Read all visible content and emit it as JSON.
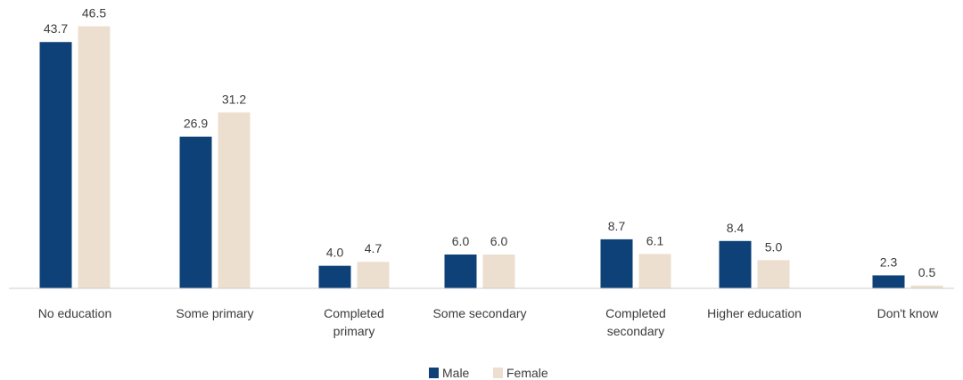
{
  "chart_data": {
    "type": "bar",
    "categories": [
      [
        "No education"
      ],
      [
        "Some primary"
      ],
      [
        "Completed",
        "primary"
      ],
      [
        "Some secondary"
      ],
      [
        "Completed",
        "secondary"
      ],
      [
        "Higher education"
      ],
      [
        "Don't know"
      ]
    ],
    "series": [
      {
        "name": "Male",
        "color": "#0d4177",
        "values": [
          43.7,
          26.9,
          4.0,
          6.0,
          8.7,
          8.4,
          2.3
        ],
        "labels": [
          "43.7",
          "26.9",
          "4.0",
          "6.0",
          "8.7",
          "8.4",
          "2.3"
        ]
      },
      {
        "name": "Female",
        "color": "#ecdfcf",
        "values": [
          46.5,
          31.2,
          4.7,
          6.0,
          6.1,
          5.0,
          0.5
        ],
        "labels": [
          "46.5",
          "31.2",
          "4.7",
          "6.0",
          "6.1",
          "5.0",
          "0.5"
        ]
      }
    ],
    "title": "",
    "xlabel": "",
    "ylabel": "",
    "ylim": [
      0,
      48
    ],
    "grid": false,
    "legend_position": "bottom-center",
    "axis_color": "#cccccc"
  }
}
